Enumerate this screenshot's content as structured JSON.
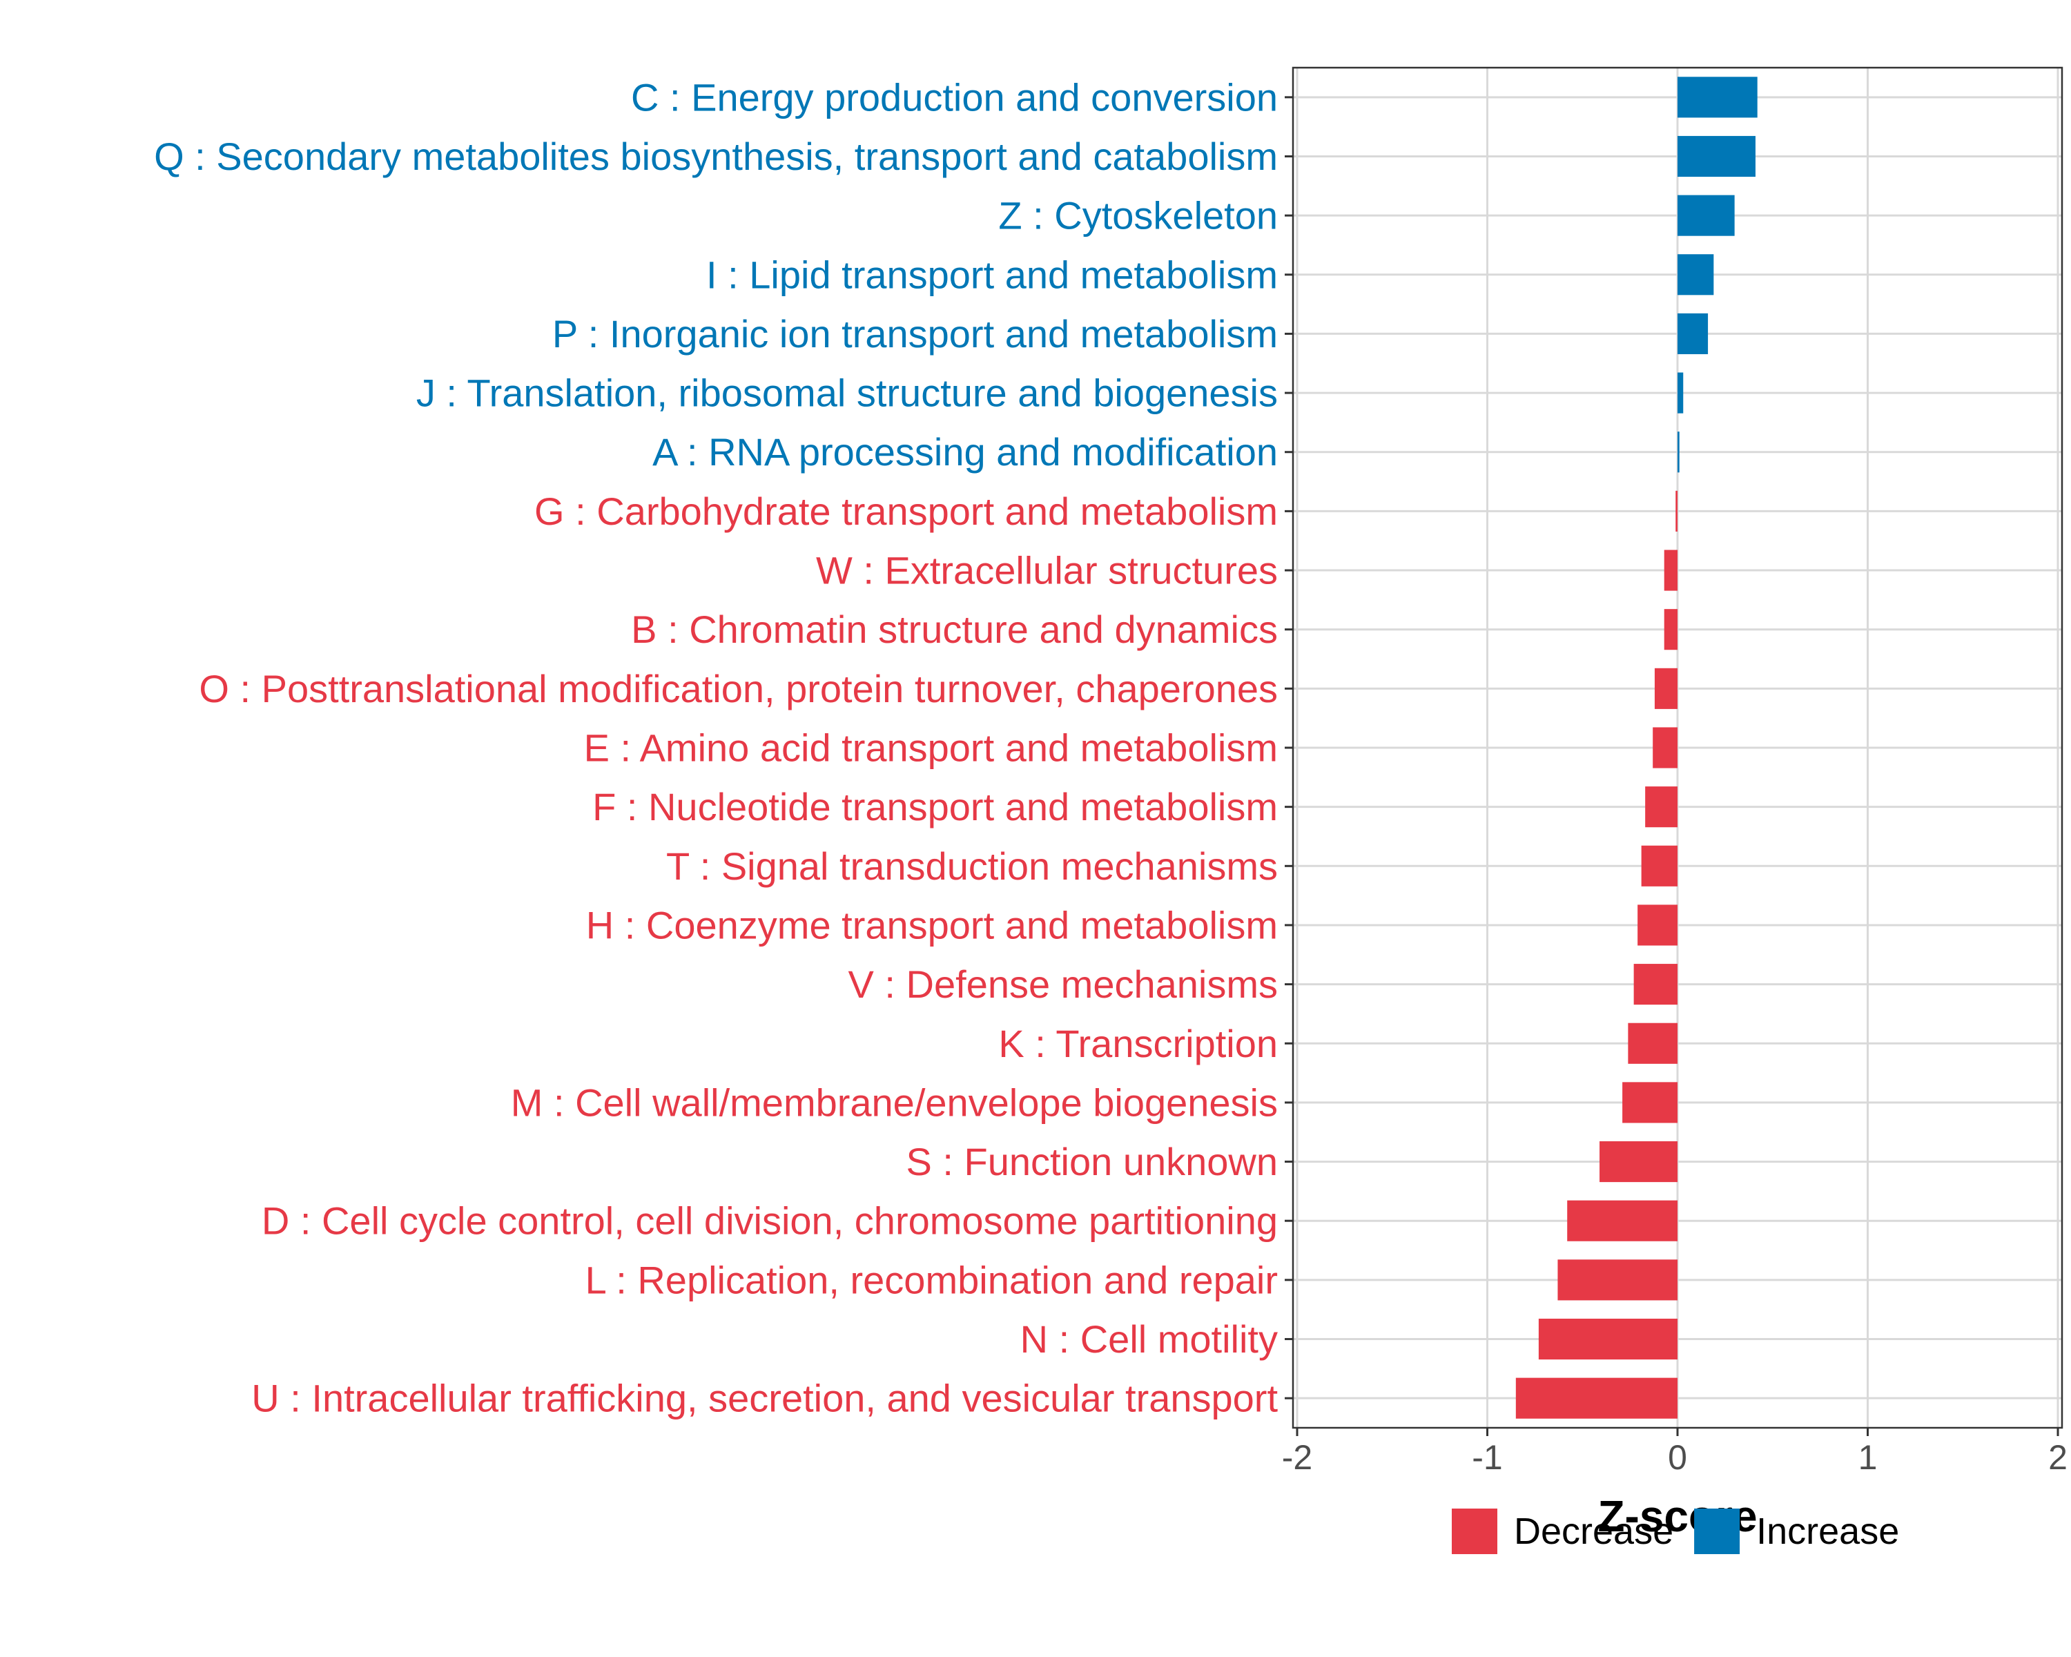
{
  "chart_data": {
    "type": "bar",
    "orientation": "horizontal",
    "title": "",
    "xlabel": "Z-score",
    "ylabel": "",
    "xlim": [
      -2,
      2
    ],
    "xticks": [
      -2,
      -1,
      0,
      1,
      2
    ],
    "xtick_labels": [
      "-2",
      "-1",
      "0",
      "1",
      "2"
    ],
    "grid": true,
    "legend_position": "bottom",
    "legend": [
      {
        "key": "decrease",
        "label": "Decrease",
        "color": "#E63946"
      },
      {
        "key": "increase",
        "label": "Increase",
        "color": "#0077B6"
      }
    ],
    "categories": [
      "C : Energy production and conversion",
      "Q : Secondary metabolites biosynthesis, transport and catabolism",
      "Z : Cytoskeleton",
      "I : Lipid transport and metabolism",
      "P : Inorganic ion transport and metabolism",
      "J : Translation, ribosomal structure and biogenesis",
      "A : RNA processing and modification",
      "G : Carbohydrate transport and metabolism",
      "W : Extracellular structures",
      "B : Chromatin structure and dynamics",
      "O : Posttranslational modification, protein turnover, chaperones",
      "E : Amino acid transport and metabolism",
      "F : Nucleotide transport and metabolism",
      "T : Signal transduction mechanisms",
      "H : Coenzyme transport and metabolism",
      "V : Defense mechanisms",
      "K : Transcription",
      "M : Cell wall/membrane/envelope biogenesis",
      "S : Function unknown",
      "D : Cell cycle control, cell division, chromosome partitioning",
      "L : Replication, recombination and repair",
      "N : Cell motility",
      "U : Intracellular trafficking, secretion, and vesicular transport"
    ],
    "values": [
      0.42,
      0.41,
      0.3,
      0.19,
      0.16,
      0.03,
      0.01,
      -0.01,
      -0.07,
      -0.07,
      -0.12,
      -0.13,
      -0.17,
      -0.19,
      -0.21,
      -0.23,
      -0.26,
      -0.29,
      -0.41,
      -0.58,
      -0.63,
      -0.73,
      -0.85
    ],
    "groups": [
      "increase",
      "increase",
      "increase",
      "increase",
      "increase",
      "increase",
      "increase",
      "decrease",
      "decrease",
      "decrease",
      "decrease",
      "decrease",
      "decrease",
      "decrease",
      "decrease",
      "decrease",
      "decrease",
      "decrease",
      "decrease",
      "decrease",
      "decrease",
      "decrease",
      "decrease"
    ]
  }
}
